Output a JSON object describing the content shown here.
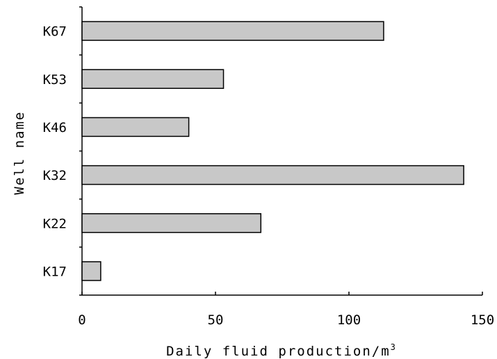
{
  "chart_data": {
    "type": "bar",
    "orientation": "horizontal",
    "categories": [
      "K17",
      "K22",
      "K32",
      "K46",
      "K53",
      "K67"
    ],
    "values": [
      7,
      67,
      143,
      40,
      53,
      113
    ],
    "xlabel": "Daily fluid production/m",
    "xlabel_superscript": "3",
    "ylabel": "Well name",
    "xlim": [
      0,
      150
    ],
    "xticks": [
      "0",
      "50",
      "100",
      "150"
    ],
    "grid": false,
    "bar_color": "#c8c8c8",
    "edge_color": "#000000"
  }
}
